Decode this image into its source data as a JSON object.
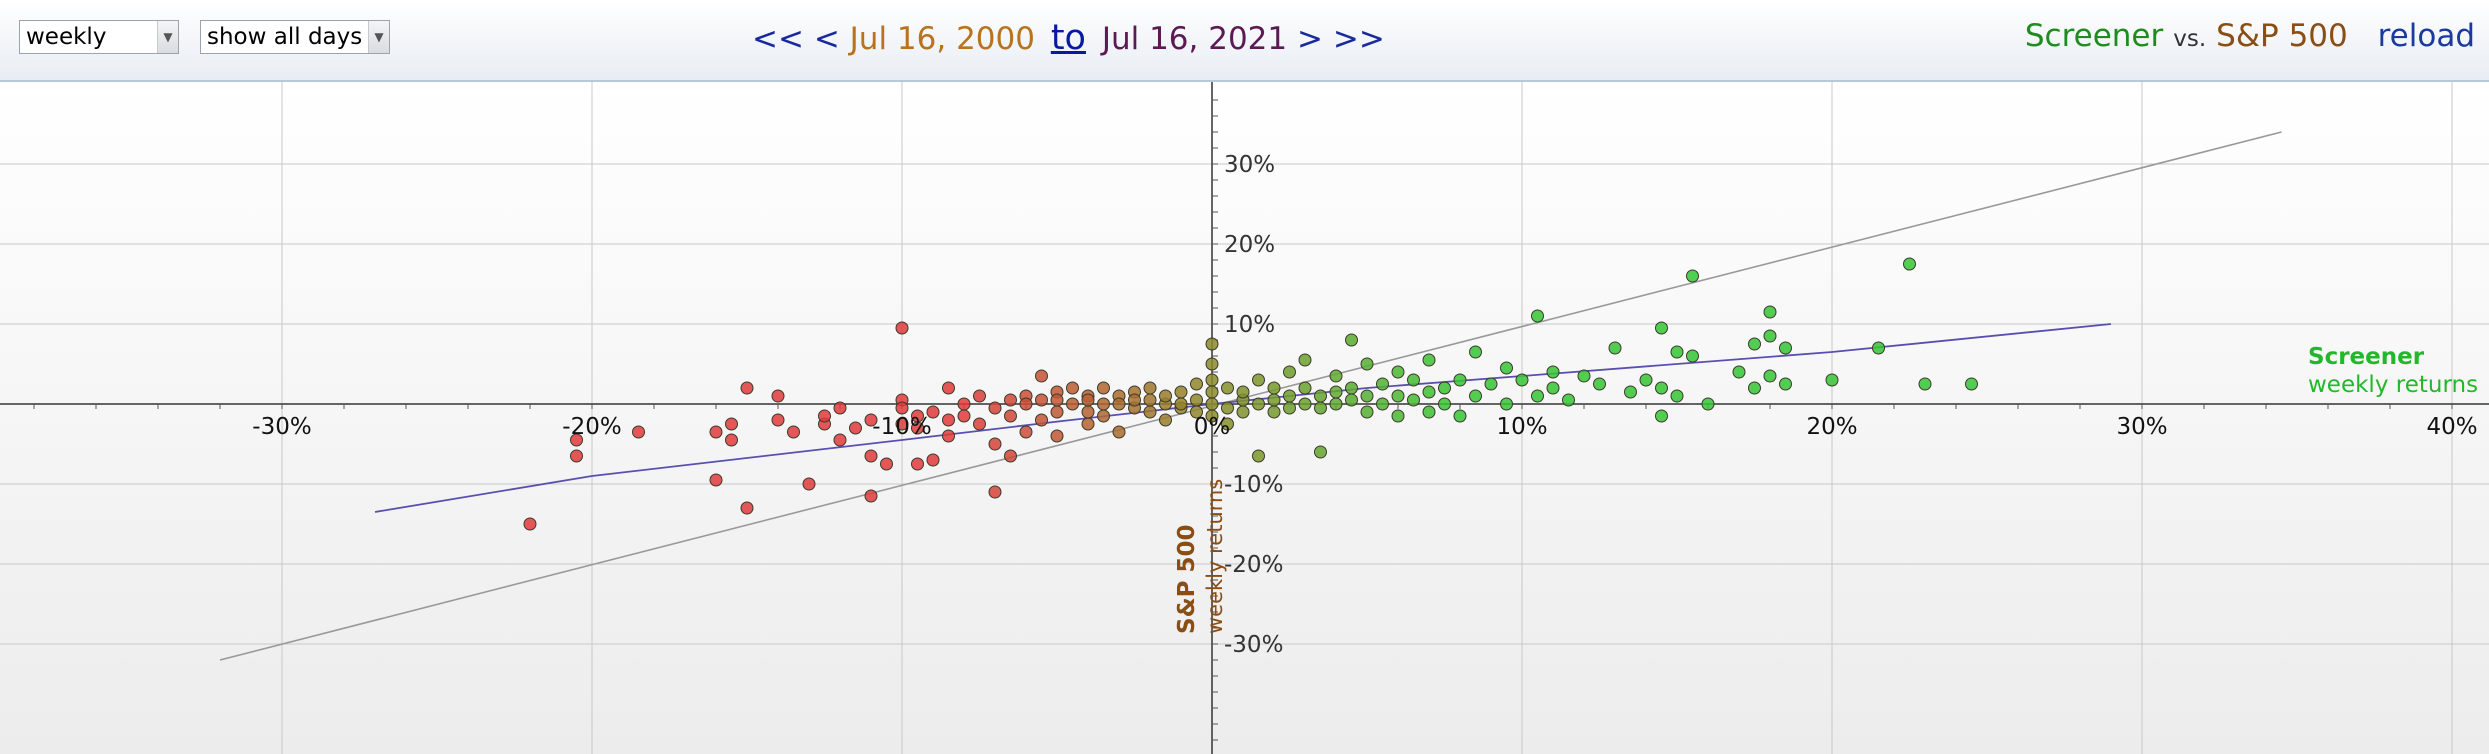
{
  "toolbar": {
    "period": "weekly",
    "days_filter": "show all days",
    "nav_first": "<<",
    "nav_prev": "<",
    "date_start": "Jul 16, 2000",
    "to_label": "to",
    "date_end": "Jul 16, 2021",
    "nav_next": ">",
    "nav_last": ">>",
    "series_a": "Screener",
    "vs_label": "vs.",
    "series_b": "S&P 500",
    "reload_label": "reload"
  },
  "colors": {
    "screener": "#22b82a",
    "sp500": "#8a4d14",
    "fit_line": "#5a4fb0",
    "identity_line": "#999999",
    "negative_points": "#e0393b",
    "neutral_points": "#8b8b2a",
    "positive_points": "#35c635"
  },
  "chart_data": {
    "type": "scatter",
    "xlabel": [
      "Screener",
      "weekly returns"
    ],
    "ylabel": [
      "S&P 500",
      "weekly returns"
    ],
    "xlim": [
      -39,
      41
    ],
    "ylim": [
      -43,
      40
    ],
    "x_ticks": [
      "-30%",
      "-20%",
      "-10%",
      "0%",
      "10%",
      "20%",
      "30%",
      "40%"
    ],
    "x_tick_values": [
      -30,
      -20,
      -10,
      0,
      10,
      20,
      30,
      40
    ],
    "y_ticks": [
      "30%",
      "20%",
      "10%",
      "-10%",
      "-20%",
      "-30%"
    ],
    "y_tick_values": [
      30,
      20,
      10,
      -10,
      -20,
      -30
    ],
    "grid": true,
    "identity_line": {
      "x": [
        -32,
        34.5
      ],
      "y": [
        -32,
        34
      ]
    },
    "regression_line": {
      "x": [
        -27,
        -20,
        -10,
        -5,
        0,
        5,
        10,
        20,
        29
      ],
      "y": [
        -13.5,
        -9,
        -4.5,
        -2.2,
        0,
        2,
        3.5,
        6.5,
        10
      ]
    },
    "points": [
      [
        -22,
        -15
      ],
      [
        -20.5,
        -4.5
      ],
      [
        -20.5,
        -6.5
      ],
      [
        -18.5,
        -3.5
      ],
      [
        -16,
        -3.5
      ],
      [
        -16,
        -9.5
      ],
      [
        -15.5,
        -2.5
      ],
      [
        -15.5,
        -4.5
      ],
      [
        -15,
        -13
      ],
      [
        -15,
        2
      ],
      [
        -14,
        1
      ],
      [
        -14,
        -2
      ],
      [
        -13.5,
        -3.5
      ],
      [
        -13,
        -10
      ],
      [
        -12.5,
        -2.5
      ],
      [
        -12.5,
        -1.5
      ],
      [
        -12,
        -0.5
      ],
      [
        -12,
        -4.5
      ],
      [
        -11.5,
        -3
      ],
      [
        -11,
        -2
      ],
      [
        -11,
        -11.5
      ],
      [
        -11,
        -6.5
      ],
      [
        -10.5,
        -7.5
      ],
      [
        -10,
        -2.5
      ],
      [
        -10,
        0.5
      ],
      [
        -10,
        -0.5
      ],
      [
        -10,
        9.5
      ],
      [
        -9.5,
        -3
      ],
      [
        -9.5,
        -7.5
      ],
      [
        -9.5,
        -1.5
      ],
      [
        -9,
        -1
      ],
      [
        -9,
        -7
      ],
      [
        -8.5,
        -2
      ],
      [
        -8.5,
        2
      ],
      [
        -8.5,
        -4
      ],
      [
        -8,
        0
      ],
      [
        -8,
        -1.5
      ],
      [
        -7.5,
        -2.5
      ],
      [
        -7.5,
        1
      ],
      [
        -7,
        -0.5
      ],
      [
        -7,
        -5
      ],
      [
        -7,
        -11
      ],
      [
        -6.5,
        0.5
      ],
      [
        -6.5,
        -6.5
      ],
      [
        -6.5,
        -1.5
      ],
      [
        -6,
        1
      ],
      [
        -6,
        -3.5
      ],
      [
        -6,
        0
      ],
      [
        -5.5,
        0.5
      ],
      [
        -5.5,
        -2
      ],
      [
        -5.5,
        3.5
      ],
      [
        -5,
        1.5
      ],
      [
        -5,
        -1
      ],
      [
        -5,
        0.5
      ],
      [
        -5,
        -4
      ],
      [
        -4.5,
        0
      ],
      [
        -4.5,
        2
      ],
      [
        -4,
        -2.5
      ],
      [
        -4,
        1
      ],
      [
        -4,
        -1
      ],
      [
        -4,
        0.5
      ],
      [
        -3.5,
        0
      ],
      [
        -3.5,
        2
      ],
      [
        -3.5,
        -1.5
      ],
      [
        -3,
        1
      ],
      [
        -3,
        -3.5
      ],
      [
        -3,
        0
      ],
      [
        -2.5,
        -0.5
      ],
      [
        -2.5,
        1.5
      ],
      [
        -2.5,
        0.5
      ],
      [
        -2,
        -1
      ],
      [
        -2,
        2
      ],
      [
        -2,
        0.5
      ],
      [
        -1.5,
        0
      ],
      [
        -1.5,
        -2
      ],
      [
        -1.5,
        1
      ],
      [
        -1,
        -0.5
      ],
      [
        -1,
        1.5
      ],
      [
        -1,
        0
      ],
      [
        -0.5,
        -1
      ],
      [
        -0.5,
        2.5
      ],
      [
        -0.5,
        0.5
      ],
      [
        0,
        -1.5
      ],
      [
        0,
        3
      ],
      [
        0,
        0
      ],
      [
        0,
        7.5
      ],
      [
        0,
        5
      ],
      [
        0,
        1.5
      ],
      [
        0.5,
        -0.5
      ],
      [
        0.5,
        2
      ],
      [
        0.5,
        -2.5
      ],
      [
        1,
        0.5
      ],
      [
        1,
        1.5
      ],
      [
        1,
        -1
      ],
      [
        1.5,
        3
      ],
      [
        1.5,
        0
      ],
      [
        1.5,
        -6.5
      ],
      [
        2,
        0.5
      ],
      [
        2,
        2
      ],
      [
        2,
        -1
      ],
      [
        2.5,
        1
      ],
      [
        2.5,
        4
      ],
      [
        2.5,
        -0.5
      ],
      [
        3,
        0
      ],
      [
        3,
        2
      ],
      [
        3,
        5.5
      ],
      [
        3.5,
        1
      ],
      [
        3.5,
        -0.5
      ],
      [
        3.5,
        -6
      ],
      [
        4,
        1.5
      ],
      [
        4,
        3.5
      ],
      [
        4,
        0
      ],
      [
        4.5,
        2
      ],
      [
        4.5,
        8
      ],
      [
        4.5,
        0.5
      ],
      [
        5,
        1
      ],
      [
        5,
        5
      ],
      [
        5,
        -1
      ],
      [
        5.5,
        2.5
      ],
      [
        5.5,
        0
      ],
      [
        6,
        4
      ],
      [
        6,
        1
      ],
      [
        6,
        -1.5
      ],
      [
        6.5,
        3
      ],
      [
        6.5,
        0.5
      ],
      [
        7,
        1.5
      ],
      [
        7,
        5.5
      ],
      [
        7,
        -1
      ],
      [
        7.5,
        2
      ],
      [
        7.5,
        0
      ],
      [
        8,
        3
      ],
      [
        8,
        -1.5
      ],
      [
        8.5,
        6.5
      ],
      [
        8.5,
        1
      ],
      [
        9,
        2.5
      ],
      [
        9.5,
        4.5
      ],
      [
        9.5,
        0
      ],
      [
        10,
        3
      ],
      [
        10.5,
        1
      ],
      [
        10.5,
        11
      ],
      [
        11,
        2
      ],
      [
        11,
        4
      ],
      [
        11.5,
        0.5
      ],
      [
        12,
        3.5
      ],
      [
        12.5,
        2.5
      ],
      [
        13,
        7
      ],
      [
        13.5,
        1.5
      ],
      [
        14,
        3
      ],
      [
        14.5,
        2
      ],
      [
        14.5,
        9.5
      ],
      [
        14.5,
        -1.5
      ],
      [
        15,
        6.5
      ],
      [
        15,
        1
      ],
      [
        15.5,
        6
      ],
      [
        15.5,
        16
      ],
      [
        16,
        0
      ],
      [
        17,
        4
      ],
      [
        17.5,
        7.5
      ],
      [
        17.5,
        2
      ],
      [
        18,
        11.5
      ],
      [
        18,
        3.5
      ],
      [
        18,
        8.5
      ],
      [
        18.5,
        7
      ],
      [
        18.5,
        2.5
      ],
      [
        20,
        3
      ],
      [
        21.5,
        7
      ],
      [
        22.5,
        17.5
      ],
      [
        23,
        2.5
      ],
      [
        24.5,
        2.5
      ]
    ]
  }
}
